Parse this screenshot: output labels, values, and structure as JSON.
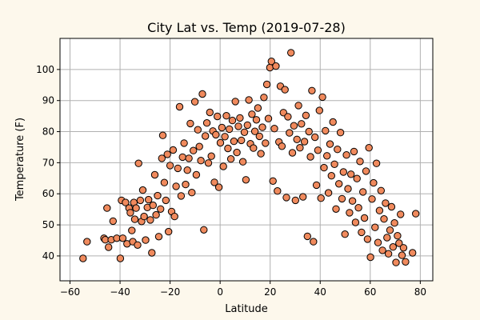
{
  "colors": {
    "page_background": "#fdf8ec",
    "plot_background": "#ffffff",
    "marker_fill": "#f08a5d",
    "marker_edge": "#000000",
    "grid": "#b0b0b0"
  },
  "chart_data": {
    "type": "scatter",
    "title": "City Lat vs. Temp (2019-07-28)",
    "xlabel": "Latitude",
    "ylabel": "Temperature (F)",
    "xlim": [
      -64,
      85
    ],
    "ylim": [
      32,
      110
    ],
    "grid": true,
    "xticks": [
      -60,
      -40,
      -20,
      0,
      20,
      40,
      60,
      80
    ],
    "yticks": [
      40,
      50,
      60,
      70,
      80,
      90,
      100
    ],
    "points": [
      [
        -54.8,
        39.2
      ],
      [
        -53.2,
        44.6
      ],
      [
        -46.4,
        45.7
      ],
      [
        -45.9,
        45.2
      ],
      [
        -45.2,
        55.4
      ],
      [
        -44.6,
        42.8
      ],
      [
        -43.5,
        45.2
      ],
      [
        -42.8,
        51.2
      ],
      [
        -41.3,
        45.7
      ],
      [
        -39.9,
        39.2
      ],
      [
        -39.4,
        57.9
      ],
      [
        -38.9,
        45.7
      ],
      [
        -37.8,
        57.2
      ],
      [
        -37.2,
        43.9
      ],
      [
        -36.4,
        55.4
      ],
      [
        -35.9,
        53.9
      ],
      [
        -35.3,
        48.2
      ],
      [
        -34.9,
        44.6
      ],
      [
        -34.5,
        57.2
      ],
      [
        -34.1,
        51.8
      ],
      [
        -33.6,
        55.4
      ],
      [
        -33.0,
        43.5
      ],
      [
        -32.6,
        69.8
      ],
      [
        -31.9,
        57.9
      ],
      [
        -31.4,
        51.1
      ],
      [
        -30.9,
        61.2
      ],
      [
        -30.4,
        52.7
      ],
      [
        -29.8,
        45.1
      ],
      [
        -29.1,
        55.6
      ],
      [
        -28.6,
        58.1
      ],
      [
        -27.9,
        51.6
      ],
      [
        -27.3,
        41.0
      ],
      [
        -26.8,
        56.3
      ],
      [
        -26.1,
        66.1
      ],
      [
        -25.6,
        53.2
      ],
      [
        -25.0,
        59.4
      ],
      [
        -24.5,
        46.2
      ],
      [
        -23.8,
        55.1
      ],
      [
        -23.3,
        71.4
      ],
      [
        -22.9,
        78.8
      ],
      [
        -22.3,
        63.6
      ],
      [
        -21.7,
        57.9
      ],
      [
        -21.1,
        72.7
      ],
      [
        -20.6,
        47.8
      ],
      [
        -20.0,
        69.1
      ],
      [
        -19.4,
        54.3
      ],
      [
        -18.8,
        74.1
      ],
      [
        -18.2,
        52.7
      ],
      [
        -17.6,
        62.4
      ],
      [
        -16.9,
        68.2
      ],
      [
        -16.2,
        88.0
      ],
      [
        -15.6,
        59.3
      ],
      [
        -15.0,
        71.8
      ],
      [
        -14.4,
        76.3
      ],
      [
        -13.8,
        63.0
      ],
      [
        -13.1,
        67.6
      ],
      [
        -12.5,
        71.4
      ],
      [
        -11.9,
        82.6
      ],
      [
        -11.3,
        60.4
      ],
      [
        -10.7,
        73.9
      ],
      [
        -10.1,
        89.6
      ],
      [
        -9.5,
        66.1
      ],
      [
        -8.9,
        80.6
      ],
      [
        -8.3,
        75.2
      ],
      [
        -7.7,
        70.7
      ],
      [
        -7.1,
        92.1
      ],
      [
        -6.5,
        48.4
      ],
      [
        -5.9,
        78.6
      ],
      [
        -5.3,
        82.8
      ],
      [
        -4.7,
        69.9
      ],
      [
        -4.1,
        86.2
      ],
      [
        -3.5,
        72.1
      ],
      [
        -2.9,
        80.2
      ],
      [
        -2.3,
        63.7
      ],
      [
        -1.7,
        79.0
      ],
      [
        -1.1,
        84.9
      ],
      [
        -0.5,
        62.1
      ],
      [
        0.1,
        76.4
      ],
      [
        0.7,
        81.3
      ],
      [
        1.3,
        68.8
      ],
      [
        1.9,
        78.4
      ],
      [
        2.5,
        85.1
      ],
      [
        3.1,
        74.6
      ],
      [
        3.7,
        80.8
      ],
      [
        4.3,
        71.2
      ],
      [
        4.9,
        83.6
      ],
      [
        5.5,
        76.9
      ],
      [
        6.1,
        89.7
      ],
      [
        6.7,
        73.3
      ],
      [
        7.3,
        81.7
      ],
      [
        7.9,
        84.4
      ],
      [
        8.5,
        77.2
      ],
      [
        9.1,
        70.3
      ],
      [
        9.7,
        79.8
      ],
      [
        10.3,
        64.5
      ],
      [
        10.9,
        82.1
      ],
      [
        11.5,
        90.2
      ],
      [
        12.1,
        76.1
      ],
      [
        12.7,
        85.6
      ],
      [
        13.3,
        74.7
      ],
      [
        13.9,
        80.1
      ],
      [
        14.5,
        83.8
      ],
      [
        15.1,
        87.6
      ],
      [
        15.7,
        78.5
      ],
      [
        16.3,
        72.9
      ],
      [
        16.9,
        81.4
      ],
      [
        17.5,
        91.0
      ],
      [
        18.1,
        76.3
      ],
      [
        18.7,
        95.2
      ],
      [
        19.3,
        84.2
      ],
      [
        19.9,
        100.6
      ],
      [
        20.5,
        102.6
      ],
      [
        21.1,
        64.1
      ],
      [
        21.7,
        81.0
      ],
      [
        22.3,
        101.1
      ],
      [
        22.9,
        60.9
      ],
      [
        23.5,
        76.7
      ],
      [
        24.1,
        94.6
      ],
      [
        24.7,
        75.3
      ],
      [
        25.3,
        86.1
      ],
      [
        25.9,
        93.5
      ],
      [
        26.5,
        58.8
      ],
      [
        27.1,
        84.8
      ],
      [
        27.7,
        79.6
      ],
      [
        28.3,
        105.4
      ],
      [
        28.9,
        73.2
      ],
      [
        29.5,
        81.9
      ],
      [
        30.1,
        57.9
      ],
      [
        30.7,
        77.5
      ],
      [
        31.3,
        88.4
      ],
      [
        31.9,
        74.8
      ],
      [
        32.5,
        82.5
      ],
      [
        33.1,
        59.0
      ],
      [
        33.7,
        76.8
      ],
      [
        34.3,
        85.2
      ],
      [
        34.9,
        46.3
      ],
      [
        35.5,
        80.0
      ],
      [
        36.1,
        71.9
      ],
      [
        36.7,
        93.2
      ],
      [
        37.3,
        44.6
      ],
      [
        37.9,
        78.2
      ],
      [
        38.5,
        62.8
      ],
      [
        39.1,
        74.0
      ],
      [
        39.7,
        86.8
      ],
      [
        40.3,
        58.6
      ],
      [
        40.9,
        91.1
      ],
      [
        41.5,
        68.4
      ],
      [
        42.1,
        80.3
      ],
      [
        42.7,
        72.2
      ],
      [
        43.3,
        60.3
      ],
      [
        43.9,
        76.0
      ],
      [
        44.5,
        65.8
      ],
      [
        45.1,
        83.1
      ],
      [
        45.7,
        69.5
      ],
      [
        46.3,
        55.1
      ],
      [
        46.9,
        74.3
      ],
      [
        47.5,
        63.2
      ],
      [
        48.1,
        79.7
      ],
      [
        48.7,
        58.4
      ],
      [
        49.3,
        67.0
      ],
      [
        49.9,
        47.0
      ],
      [
        50.5,
        72.5
      ],
      [
        51.1,
        61.6
      ],
      [
        51.7,
        53.9
      ],
      [
        52.3,
        66.3
      ],
      [
        52.9,
        57.7
      ],
      [
        53.5,
        73.6
      ],
      [
        54.1,
        50.8
      ],
      [
        54.7,
        64.9
      ],
      [
        55.3,
        55.5
      ],
      [
        55.9,
        70.4
      ],
      [
        56.5,
        47.6
      ],
      [
        57.1,
        60.6
      ],
      [
        57.7,
        52.2
      ],
      [
        58.3,
        67.3
      ],
      [
        58.9,
        45.4
      ],
      [
        59.5,
        74.8
      ],
      [
        60.1,
        39.6
      ],
      [
        60.7,
        58.3
      ],
      [
        61.3,
        63.5
      ],
      [
        61.9,
        49.2
      ],
      [
        62.5,
        69.8
      ],
      [
        63.1,
        44.3
      ],
      [
        63.7,
        54.6
      ],
      [
        64.3,
        61.0
      ],
      [
        64.9,
        41.8
      ],
      [
        65.5,
        51.9
      ],
      [
        66.1,
        57.0
      ],
      [
        66.7,
        45.9
      ],
      [
        67.3,
        40.7
      ],
      [
        67.9,
        48.3
      ],
      [
        68.5,
        55.8
      ],
      [
        69.1,
        42.9
      ],
      [
        69.7,
        50.6
      ],
      [
        70.3,
        37.9
      ],
      [
        70.9,
        46.5
      ],
      [
        71.5,
        44.1
      ],
      [
        72.1,
        53.4
      ],
      [
        72.7,
        40.2
      ],
      [
        73.3,
        42.6
      ],
      [
        74.1,
        38.1
      ],
      [
        76.9,
        41.0
      ],
      [
        78.2,
        53.6
      ]
    ]
  }
}
